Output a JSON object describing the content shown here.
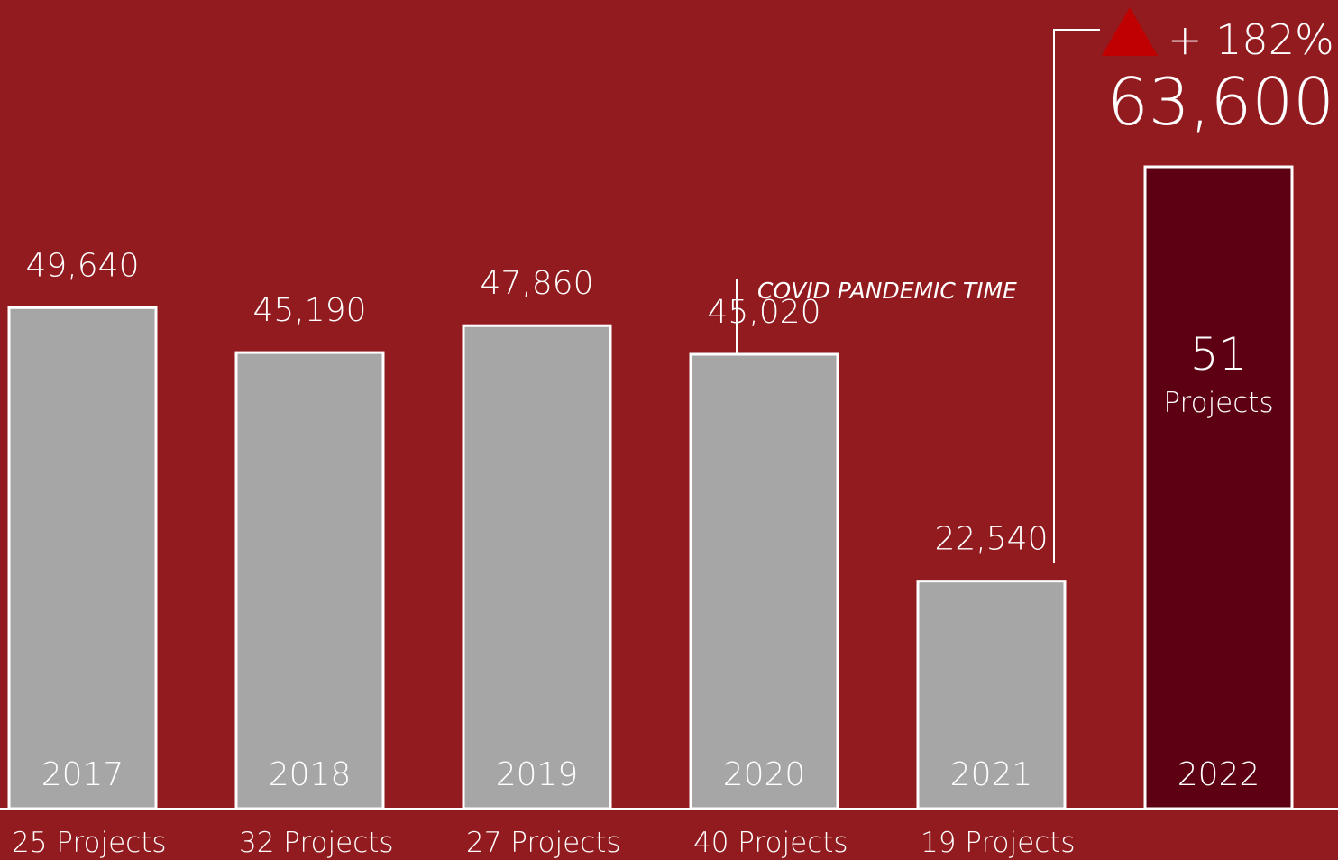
{
  "chart_data": {
    "type": "bar",
    "categories": [
      "2017",
      "2018",
      "2019",
      "2020",
      "2021",
      "2022"
    ],
    "values": [
      49640,
      45190,
      47860,
      45020,
      22540,
      63600
    ],
    "value_labels": [
      "49,640",
      "45,190",
      "47,860",
      "45,020",
      "22,540",
      "63,600"
    ],
    "project_labels": [
      "25 Projects",
      "32 Projects",
      "27 Projects",
      "40 Projects",
      "19 Projects",
      null
    ],
    "highlight_projects": [
      "51",
      "Projects"
    ],
    "colors": [
      "#a6a6a6",
      "#a6a6a6",
      "#a6a6a6",
      "#a6a6a6",
      "#a6a6a6",
      "#5e0014"
    ],
    "highlight_index": 5,
    "annotations": {
      "covid": "COVID PANDEMIC TIME",
      "growth": "+ 182%"
    },
    "growth_color": "#c00000"
  }
}
